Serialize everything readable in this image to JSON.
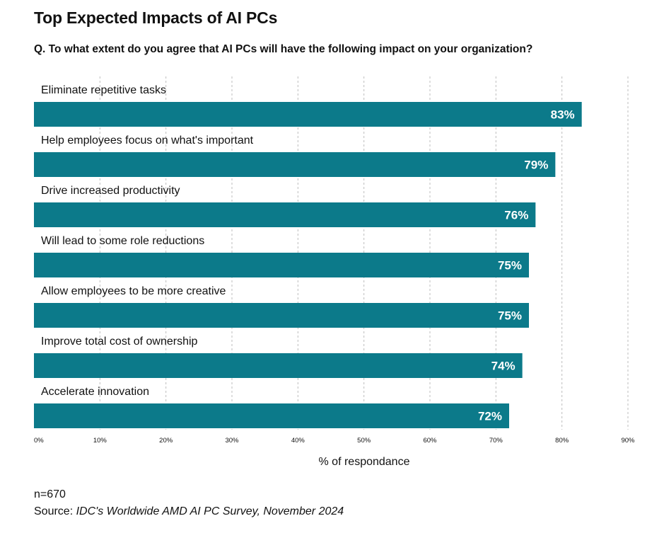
{
  "title": "Top Expected Impacts of AI PCs",
  "subtitle": "Q. To what extent do you agree that AI PCs will have the following impact on your organization?",
  "footer": {
    "n_label": "n=670",
    "source_prefix": "Source: ",
    "source_text": "IDC's Worldwide AMD AI PC Survey, November 2024"
  },
  "colors": {
    "bar": "#0c7a8a",
    "bar_label": "#ffffff",
    "grid": "#bdbdbd",
    "text": "#111111"
  },
  "chart_data": {
    "type": "bar",
    "orientation": "horizontal",
    "categories": [
      "Eliminate repetitive tasks",
      "Help employees focus on what's important",
      "Drive increased productivity",
      "Will lead to some role reductions",
      "Allow employees to be more creative",
      "Improve total cost of ownership",
      "Accelerate innovation"
    ],
    "values": [
      83,
      79,
      76,
      75,
      75,
      74,
      72
    ],
    "data_labels": [
      "83%",
      "79%",
      "76%",
      "75%",
      "75%",
      "74%",
      "72%"
    ],
    "xlabel": "% of respondance",
    "ylabel": "",
    "xlim": [
      0,
      90
    ],
    "xticks": [
      0,
      10,
      20,
      30,
      40,
      50,
      60,
      70,
      80,
      90
    ],
    "xtick_labels": [
      "0%",
      "10%",
      "20%",
      "30%",
      "40%",
      "50%",
      "60%",
      "70%",
      "80%",
      "90%"
    ],
    "grid": "vertical dashed",
    "legend": "none"
  }
}
